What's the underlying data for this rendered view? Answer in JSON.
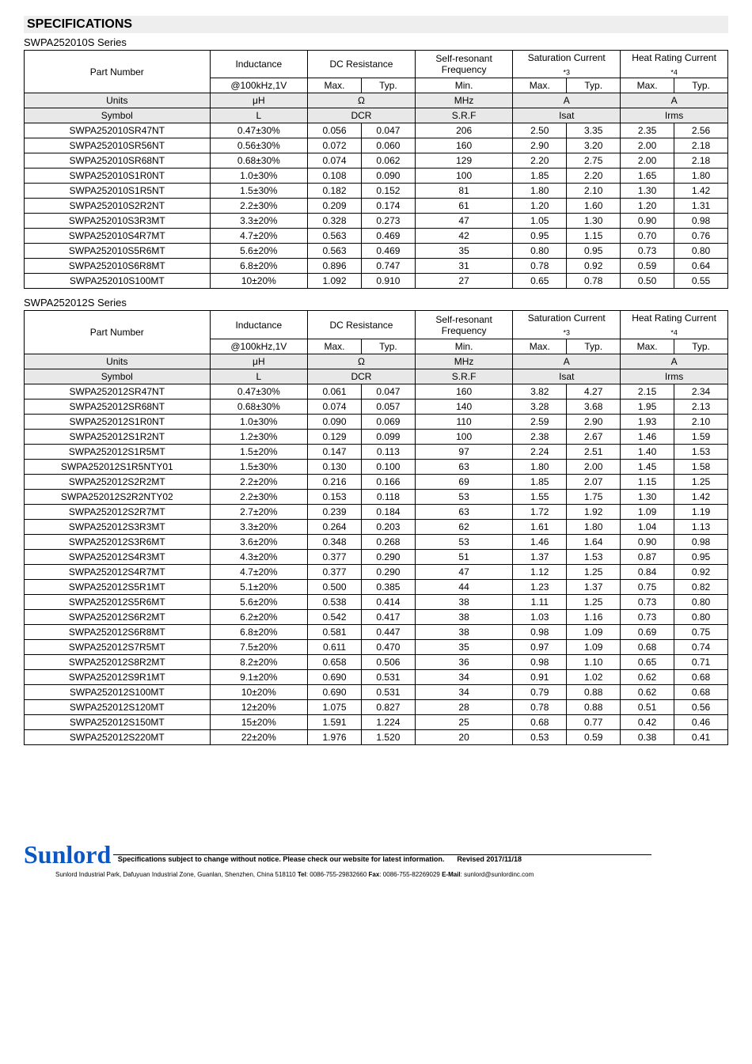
{
  "page": {
    "title": "SPECIFICATIONS"
  },
  "series": [
    {
      "name": "SWPA252010S Series",
      "headers": {
        "partNumber": "Part Number",
        "inductance": "Inductance",
        "dcResistance": "DC Resistance",
        "srf": "Self-resonant Frequency",
        "isat": "Saturation Current",
        "isat_note": "*3",
        "irms": "Heat Rating Current",
        "irms_note": "*4",
        "condition": "@100kHz,1V",
        "max": "Max.",
        "typ": "Typ.",
        "min": "Min."
      },
      "units": {
        "label": "Units",
        "ind": "μH",
        "dcr": "Ω",
        "srf": "MHz",
        "isat": "A",
        "irms": "A"
      },
      "symbol": {
        "label": "Symbol",
        "ind": "L",
        "dcr": "DCR",
        "srf": "S.R.F",
        "isat": "Isat",
        "irms": "Irms"
      },
      "rows": [
        {
          "pn": "SWPA252010SR47NT",
          "ind": "0.47±30%",
          "dcrMax": "0.056",
          "dcrTyp": "0.047",
          "srf": "206",
          "isatMax": "2.50",
          "isatTyp": "3.35",
          "irmsMax": "2.35",
          "irmsTyp": "2.56"
        },
        {
          "pn": "SWPA252010SR56NT",
          "ind": "0.56±30%",
          "dcrMax": "0.072",
          "dcrTyp": "0.060",
          "srf": "160",
          "isatMax": "2.90",
          "isatTyp": "3.20",
          "irmsMax": "2.00",
          "irmsTyp": "2.18"
        },
        {
          "pn": "SWPA252010SR68NT",
          "ind": "0.68±30%",
          "dcrMax": "0.074",
          "dcrTyp": "0.062",
          "srf": "129",
          "isatMax": "2.20",
          "isatTyp": "2.75",
          "irmsMax": "2.00",
          "irmsTyp": "2.18"
        },
        {
          "pn": "SWPA252010S1R0NT",
          "ind": "1.0±30%",
          "dcrMax": "0.108",
          "dcrTyp": "0.090",
          "srf": "100",
          "isatMax": "1.85",
          "isatTyp": "2.20",
          "irmsMax": "1.65",
          "irmsTyp": "1.80"
        },
        {
          "pn": "SWPA252010S1R5NT",
          "ind": "1.5±30%",
          "dcrMax": "0.182",
          "dcrTyp": "0.152",
          "srf": "81",
          "isatMax": "1.80",
          "isatTyp": "2.10",
          "irmsMax": "1.30",
          "irmsTyp": "1.42"
        },
        {
          "pn": "SWPA252010S2R2NT",
          "ind": "2.2±30%",
          "dcrMax": "0.209",
          "dcrTyp": "0.174",
          "srf": "61",
          "isatMax": "1.20",
          "isatTyp": "1.60",
          "irmsMax": "1.20",
          "irmsTyp": "1.31"
        },
        {
          "pn": "SWPA252010S3R3MT",
          "ind": "3.3±20%",
          "dcrMax": "0.328",
          "dcrTyp": "0.273",
          "srf": "47",
          "isatMax": "1.05",
          "isatTyp": "1.30",
          "irmsMax": "0.90",
          "irmsTyp": "0.98"
        },
        {
          "pn": "SWPA252010S4R7MT",
          "ind": "4.7±20%",
          "dcrMax": "0.563",
          "dcrTyp": "0.469",
          "srf": "42",
          "isatMax": "0.95",
          "isatTyp": "1.15",
          "irmsMax": "0.70",
          "irmsTyp": "0.76"
        },
        {
          "pn": "SWPA252010S5R6MT",
          "ind": "5.6±20%",
          "dcrMax": "0.563",
          "dcrTyp": "0.469",
          "srf": "35",
          "isatMax": "0.80",
          "isatTyp": "0.95",
          "irmsMax": "0.73",
          "irmsTyp": "0.80"
        },
        {
          "pn": "SWPA252010S6R8MT",
          "ind": "6.8±20%",
          "dcrMax": "0.896",
          "dcrTyp": "0.747",
          "srf": "31",
          "isatMax": "0.78",
          "isatTyp": "0.92",
          "irmsMax": "0.59",
          "irmsTyp": "0.64"
        },
        {
          "pn": "SWPA252010S100MT",
          "ind": "10±20%",
          "dcrMax": "1.092",
          "dcrTyp": "0.910",
          "srf": "27",
          "isatMax": "0.65",
          "isatTyp": "0.78",
          "irmsMax": "0.50",
          "irmsTyp": "0.55"
        }
      ]
    },
    {
      "name": "SWPA252012S Series",
      "headers": {
        "partNumber": "Part Number",
        "inductance": "Inductance",
        "dcResistance": "DC Resistance",
        "srf": "Self-resonant Frequency",
        "isat": "Saturation Current",
        "isat_note": "*3",
        "irms": "Heat Rating Current",
        "irms_note": "*4",
        "condition": "@100kHz,1V",
        "max": "Max.",
        "typ": "Typ.",
        "min": "Min."
      },
      "units": {
        "label": "Units",
        "ind": "μH",
        "dcr": "Ω",
        "srf": "MHz",
        "isat": "A",
        "irms": "A"
      },
      "symbol": {
        "label": "Symbol",
        "ind": "L",
        "dcr": "DCR",
        "srf": "S.R.F",
        "isat": "Isat",
        "irms": "Irms"
      },
      "rows": [
        {
          "pn": "SWPA252012SR47NT",
          "ind": "0.47±30%",
          "dcrMax": "0.061",
          "dcrTyp": "0.047",
          "srf": "160",
          "isatMax": "3.82",
          "isatTyp": "4.27",
          "irmsMax": "2.15",
          "irmsTyp": "2.34"
        },
        {
          "pn": "SWPA252012SR68NT",
          "ind": "0.68±30%",
          "dcrMax": "0.074",
          "dcrTyp": "0.057",
          "srf": "140",
          "isatMax": "3.28",
          "isatTyp": "3.68",
          "irmsMax": "1.95",
          "irmsTyp": "2.13"
        },
        {
          "pn": "SWPA252012S1R0NT",
          "ind": "1.0±30%",
          "dcrMax": "0.090",
          "dcrTyp": "0.069",
          "srf": "110",
          "isatMax": "2.59",
          "isatTyp": "2.90",
          "irmsMax": "1.93",
          "irmsTyp": "2.10"
        },
        {
          "pn": "SWPA252012S1R2NT",
          "ind": "1.2±30%",
          "dcrMax": "0.129",
          "dcrTyp": "0.099",
          "srf": "100",
          "isatMax": "2.38",
          "isatTyp": "2.67",
          "irmsMax": "1.46",
          "irmsTyp": "1.59"
        },
        {
          "pn": "SWPA252012S1R5MT",
          "ind": "1.5±20%",
          "dcrMax": "0.147",
          "dcrTyp": "0.113",
          "srf": "97",
          "isatMax": "2.24",
          "isatTyp": "2.51",
          "irmsMax": "1.40",
          "irmsTyp": "1.53"
        },
        {
          "pn": "SWPA252012S1R5NTY01",
          "ind": "1.5±30%",
          "dcrMax": "0.130",
          "dcrTyp": "0.100",
          "srf": "63",
          "isatMax": "1.80",
          "isatTyp": "2.00",
          "irmsMax": "1.45",
          "irmsTyp": "1.58"
        },
        {
          "pn": "SWPA252012S2R2MT",
          "ind": "2.2±20%",
          "dcrMax": "0.216",
          "dcrTyp": "0.166",
          "srf": "69",
          "isatMax": "1.85",
          "isatTyp": "2.07",
          "irmsMax": "1.15",
          "irmsTyp": "1.25"
        },
        {
          "pn": "SWPA252012S2R2NTY02",
          "ind": "2.2±30%",
          "dcrMax": "0.153",
          "dcrTyp": "0.118",
          "srf": "53",
          "isatMax": "1.55",
          "isatTyp": "1.75",
          "irmsMax": "1.30",
          "irmsTyp": "1.42"
        },
        {
          "pn": "SWPA252012S2R7MT",
          "ind": "2.7±20%",
          "dcrMax": "0.239",
          "dcrTyp": "0.184",
          "srf": "63",
          "isatMax": "1.72",
          "isatTyp": "1.92",
          "irmsMax": "1.09",
          "irmsTyp": "1.19"
        },
        {
          "pn": "SWPA252012S3R3MT",
          "ind": "3.3±20%",
          "dcrMax": "0.264",
          "dcrTyp": "0.203",
          "srf": "62",
          "isatMax": "1.61",
          "isatTyp": "1.80",
          "irmsMax": "1.04",
          "irmsTyp": "1.13"
        },
        {
          "pn": "SWPA252012S3R6MT",
          "ind": "3.6±20%",
          "dcrMax": "0.348",
          "dcrTyp": "0.268",
          "srf": "53",
          "isatMax": "1.46",
          "isatTyp": "1.64",
          "irmsMax": "0.90",
          "irmsTyp": "0.98"
        },
        {
          "pn": "SWPA252012S4R3MT",
          "ind": "4.3±20%",
          "dcrMax": "0.377",
          "dcrTyp": "0.290",
          "srf": "51",
          "isatMax": "1.37",
          "isatTyp": "1.53",
          "irmsMax": "0.87",
          "irmsTyp": "0.95"
        },
        {
          "pn": "SWPA252012S4R7MT",
          "ind": "4.7±20%",
          "dcrMax": "0.377",
          "dcrTyp": "0.290",
          "srf": "47",
          "isatMax": "1.12",
          "isatTyp": "1.25",
          "irmsMax": "0.84",
          "irmsTyp": "0.92"
        },
        {
          "pn": "SWPA252012S5R1MT",
          "ind": "5.1±20%",
          "dcrMax": "0.500",
          "dcrTyp": "0.385",
          "srf": "44",
          "isatMax": "1.23",
          "isatTyp": "1.37",
          "irmsMax": "0.75",
          "irmsTyp": "0.82"
        },
        {
          "pn": "SWPA252012S5R6MT",
          "ind": "5.6±20%",
          "dcrMax": "0.538",
          "dcrTyp": "0.414",
          "srf": "38",
          "isatMax": "1.11",
          "isatTyp": "1.25",
          "irmsMax": "0.73",
          "irmsTyp": "0.80"
        },
        {
          "pn": "SWPA252012S6R2MT",
          "ind": "6.2±20%",
          "dcrMax": "0.542",
          "dcrTyp": "0.417",
          "srf": "38",
          "isatMax": "1.03",
          "isatTyp": "1.16",
          "irmsMax": "0.73",
          "irmsTyp": "0.80"
        },
        {
          "pn": "SWPA252012S6R8MT",
          "ind": "6.8±20%",
          "dcrMax": "0.581",
          "dcrTyp": "0.447",
          "srf": "38",
          "isatMax": "0.98",
          "isatTyp": "1.09",
          "irmsMax": "0.69",
          "irmsTyp": "0.75"
        },
        {
          "pn": "SWPA252012S7R5MT",
          "ind": "7.5±20%",
          "dcrMax": "0.611",
          "dcrTyp": "0.470",
          "srf": "35",
          "isatMax": "0.97",
          "isatTyp": "1.09",
          "irmsMax": "0.68",
          "irmsTyp": "0.74"
        },
        {
          "pn": "SWPA252012S8R2MT",
          "ind": "8.2±20%",
          "dcrMax": "0.658",
          "dcrTyp": "0.506",
          "srf": "36",
          "isatMax": "0.98",
          "isatTyp": "1.10",
          "irmsMax": "0.65",
          "irmsTyp": "0.71"
        },
        {
          "pn": "SWPA252012S9R1MT",
          "ind": "9.1±20%",
          "dcrMax": "0.690",
          "dcrTyp": "0.531",
          "srf": "34",
          "isatMax": "0.91",
          "isatTyp": "1.02",
          "irmsMax": "0.62",
          "irmsTyp": "0.68"
        },
        {
          "pn": "SWPA252012S100MT",
          "ind": "10±20%",
          "dcrMax": "0.690",
          "dcrTyp": "0.531",
          "srf": "34",
          "isatMax": "0.79",
          "isatTyp": "0.88",
          "irmsMax": "0.62",
          "irmsTyp": "0.68"
        },
        {
          "pn": "SWPA252012S120MT",
          "ind": "12±20%",
          "dcrMax": "1.075",
          "dcrTyp": "0.827",
          "srf": "28",
          "isatMax": "0.78",
          "isatTyp": "0.88",
          "irmsMax": "0.51",
          "irmsTyp": "0.56"
        },
        {
          "pn": "SWPA252012S150MT",
          "ind": "15±20%",
          "dcrMax": "1.591",
          "dcrTyp": "1.224",
          "srf": "25",
          "isatMax": "0.68",
          "isatTyp": "0.77",
          "irmsMax": "0.42",
          "irmsTyp": "0.46"
        },
        {
          "pn": "SWPA252012S220MT",
          "ind": "22±20%",
          "dcrMax": "1.976",
          "dcrTyp": "1.520",
          "srf": "20",
          "isatMax": "0.53",
          "isatTyp": "0.59",
          "irmsMax": "0.38",
          "irmsTyp": "0.41"
        }
      ]
    }
  ],
  "footer": {
    "brand": "Sunlord",
    "disclaimer": "Specifications subject to change without notice. Please check our website for latest information.",
    "revised": "Revised 2017/11/18",
    "address": "Sunlord Industrial Park, Dafuyuan Industrial Zone, Guanlan, Shenzhen, China 518110",
    "tel_label": "Tel",
    "tel": ": 0086-755-29832660 ",
    "fax_label": "Fax",
    "fax": ": 0086-755-82269029 ",
    "email_label": "E-Mail",
    "email": ": sunlord@sunlordinc.com"
  }
}
